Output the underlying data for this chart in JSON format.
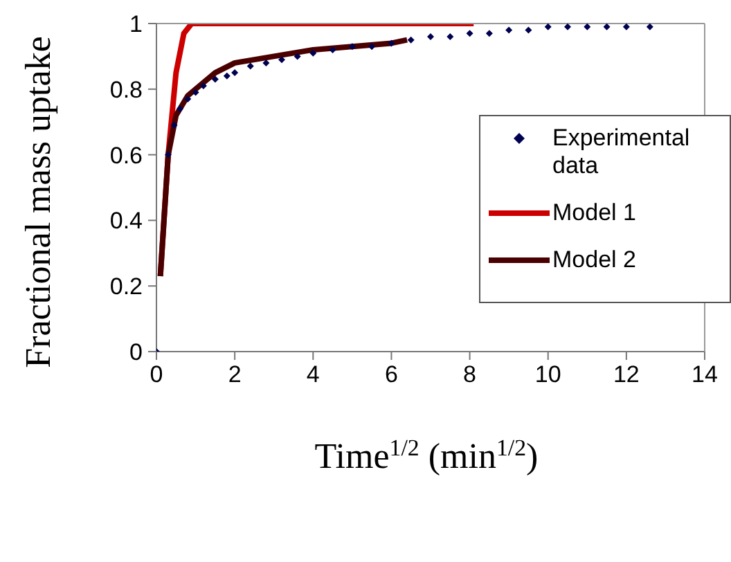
{
  "chart_data": {
    "type": "scatter",
    "xlabel": "Time$^{1/2}$ (min$^{1/2}$)",
    "ylabel": "Fractional mass uptake",
    "xlim": [
      0,
      14
    ],
    "xticks": [
      0,
      2,
      4,
      6,
      8,
      10,
      12,
      14
    ],
    "ylim": [
      0,
      1
    ],
    "yticks": [
      0,
      0.2,
      0.4,
      0.6,
      0.8,
      1
    ],
    "legend": "right",
    "series": [
      {
        "name": "Experimental data",
        "marker": "diamond",
        "color": "#000050",
        "x": [
          0,
          0.3,
          0.45,
          0.6,
          0.8,
          1,
          1.2,
          1.5,
          1.8,
          2,
          2.4,
          2.8,
          3.2,
          3.6,
          4,
          4.5,
          5,
          5.5,
          6,
          6.5,
          7,
          7.5,
          8,
          8.5,
          9,
          9.5,
          10,
          10.5,
          11,
          11.5,
          12,
          12.6
        ],
        "values": [
          0,
          0.6,
          0.69,
          0.74,
          0.77,
          0.79,
          0.81,
          0.83,
          0.84,
          0.85,
          0.87,
          0.88,
          0.89,
          0.9,
          0.91,
          0.92,
          0.93,
          0.93,
          0.94,
          0.95,
          0.96,
          0.96,
          0.97,
          0.97,
          0.98,
          0.98,
          0.99,
          0.99,
          0.99,
          0.99,
          0.99,
          0.99
        ]
      },
      {
        "name": "Model 1",
        "type": "line",
        "marker": "none",
        "color": "#cc0000",
        "x": [
          0.1,
          0.3,
          0.5,
          0.7,
          0.9,
          2,
          4,
          6,
          8.1
        ],
        "values": [
          0.23,
          0.6,
          0.85,
          0.97,
          1,
          1,
          1,
          1,
          1
        ]
      },
      {
        "name": "Model 2",
        "type": "line",
        "marker": "none",
        "color": "#4a0000",
        "x": [
          0.1,
          0.3,
          0.5,
          0.8,
          1,
          1.5,
          2,
          3,
          4,
          5,
          6,
          6.4
        ],
        "values": [
          0.23,
          0.6,
          0.72,
          0.78,
          0.8,
          0.85,
          0.88,
          0.9,
          0.92,
          0.93,
          0.94,
          0.95
        ]
      }
    ]
  }
}
